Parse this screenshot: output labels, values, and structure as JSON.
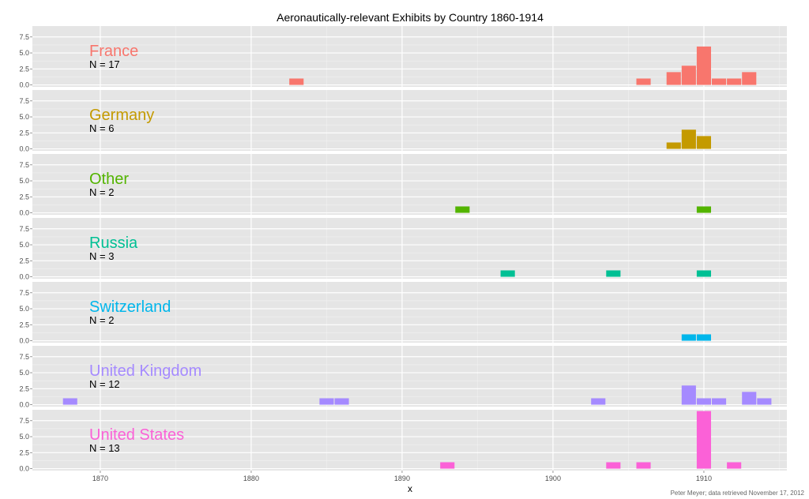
{
  "chart_data": {
    "type": "bar",
    "title": "Aeronautically-relevant Exhibits by Country 1860-1914",
    "xlabel": "x",
    "ylabel": "",
    "credit": "Peter Meyer; data retrieved November 17, 2012",
    "xlim": [
      1865.5,
      1915.5
    ],
    "ylim": [
      -0.3,
      9.2
    ],
    "x_ticks": [
      1870,
      1880,
      1890,
      1900,
      1910
    ],
    "x_tick_labels": [
      "1870",
      "1880",
      "1890",
      "1900",
      "1910"
    ],
    "y_ticks": [
      0,
      2.5,
      5,
      7.5
    ],
    "y_tick_labels": [
      "0.0",
      "2.5",
      "5.0",
      "7.5"
    ],
    "grid": true,
    "bin_width": 1,
    "panels": [
      {
        "name": "France",
        "count_label": "N = 17",
        "color": "#F8766D",
        "bars": [
          {
            "x": 1883,
            "y": 1
          },
          {
            "x": 1906,
            "y": 1
          },
          {
            "x": 1908,
            "y": 2
          },
          {
            "x": 1909,
            "y": 3
          },
          {
            "x": 1910,
            "y": 6
          },
          {
            "x": 1911,
            "y": 1
          },
          {
            "x": 1912,
            "y": 1
          },
          {
            "x": 1913,
            "y": 2
          }
        ]
      },
      {
        "name": "Germany",
        "count_label": "N = 6",
        "color": "#C49A00",
        "bars": [
          {
            "x": 1908,
            "y": 1
          },
          {
            "x": 1909,
            "y": 3
          },
          {
            "x": 1910,
            "y": 2
          }
        ]
      },
      {
        "name": "Other",
        "count_label": "N = 2",
        "color": "#53B400",
        "bars": [
          {
            "x": 1894,
            "y": 1
          },
          {
            "x": 1910,
            "y": 1
          }
        ]
      },
      {
        "name": "Russia",
        "count_label": "N = 3",
        "color": "#00C094",
        "bars": [
          {
            "x": 1897,
            "y": 1
          },
          {
            "x": 1904,
            "y": 1
          },
          {
            "x": 1910,
            "y": 1
          }
        ]
      },
      {
        "name": "Switzerland",
        "count_label": "N = 2",
        "color": "#00B6EB",
        "bars": [
          {
            "x": 1909,
            "y": 1
          },
          {
            "x": 1910,
            "y": 1
          }
        ]
      },
      {
        "name": "United Kingdom",
        "count_label": "N = 12",
        "color": "#A58AFF",
        "bars": [
          {
            "x": 1868,
            "y": 1
          },
          {
            "x": 1885,
            "y": 1
          },
          {
            "x": 1886,
            "y": 1
          },
          {
            "x": 1903,
            "y": 1
          },
          {
            "x": 1909,
            "y": 3
          },
          {
            "x": 1910,
            "y": 1
          },
          {
            "x": 1911,
            "y": 1
          },
          {
            "x": 1913,
            "y": 2
          },
          {
            "x": 1914,
            "y": 1
          }
        ]
      },
      {
        "name": "United States",
        "count_label": "N = 13",
        "color": "#FB61D7",
        "bars": [
          {
            "x": 1893,
            "y": 1
          },
          {
            "x": 1904,
            "y": 1
          },
          {
            "x": 1906,
            "y": 1
          },
          {
            "x": 1910,
            "y": 9
          },
          {
            "x": 1912,
            "y": 1
          }
        ]
      }
    ]
  }
}
